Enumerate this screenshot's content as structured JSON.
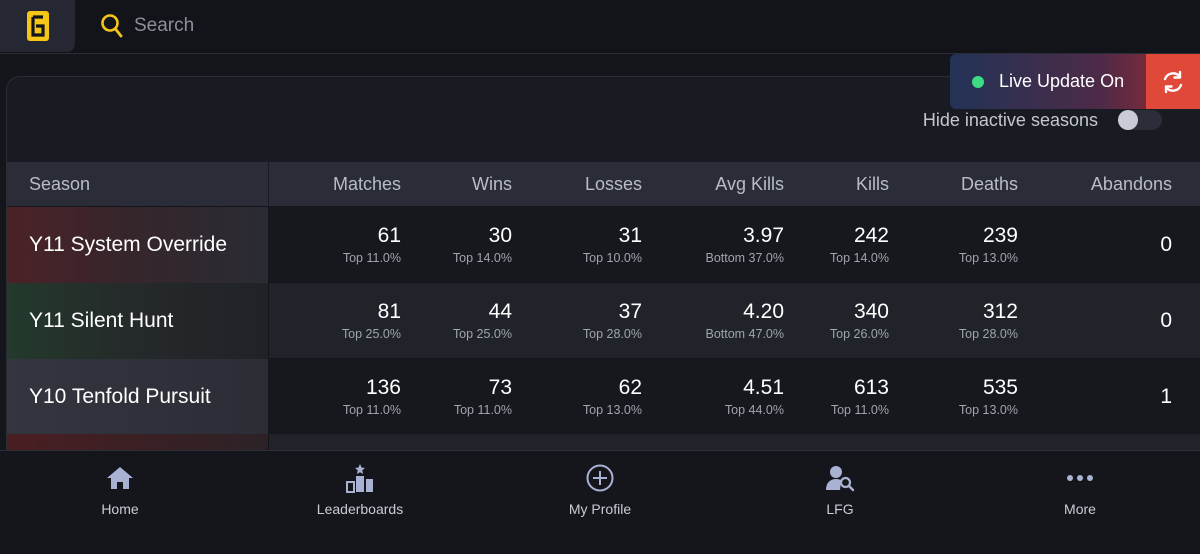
{
  "search": {
    "placeholder": "Search"
  },
  "live": {
    "label": "Live Update On",
    "status_color": "#3ddc84"
  },
  "filters": {
    "hide_inactive_label": "Hide inactive seasons",
    "hide_inactive_enabled": false
  },
  "table": {
    "headers": [
      "Season",
      "Matches",
      "Wins",
      "Losses",
      "Avg Kills",
      "Kills",
      "Deaths",
      "Abandons"
    ],
    "rows": [
      {
        "season": "Y11 System Override",
        "matches": {
          "value": "61",
          "rank": "Top 11.0%"
        },
        "wins": {
          "value": "30",
          "rank": "Top 14.0%"
        },
        "losses": {
          "value": "31",
          "rank": "Top 10.0%"
        },
        "avg_kills": {
          "value": "3.97",
          "rank": "Bottom 37.0%"
        },
        "kills": {
          "value": "242",
          "rank": "Top 14.0%"
        },
        "deaths": {
          "value": "239",
          "rank": "Top 13.0%"
        },
        "abandons": "0"
      },
      {
        "season": "Y11 Silent Hunt",
        "matches": {
          "value": "81",
          "rank": "Top 25.0%"
        },
        "wins": {
          "value": "44",
          "rank": "Top 25.0%"
        },
        "losses": {
          "value": "37",
          "rank": "Top 28.0%"
        },
        "avg_kills": {
          "value": "4.20",
          "rank": "Bottom 47.0%"
        },
        "kills": {
          "value": "340",
          "rank": "Top 26.0%"
        },
        "deaths": {
          "value": "312",
          "rank": "Top 28.0%"
        },
        "abandons": "0"
      },
      {
        "season": "Y10 Tenfold Pursuit",
        "matches": {
          "value": "136",
          "rank": "Top 11.0%"
        },
        "wins": {
          "value": "73",
          "rank": "Top 11.0%"
        },
        "losses": {
          "value": "62",
          "rank": "Top 13.0%"
        },
        "avg_kills": {
          "value": "4.51",
          "rank": "Top 44.0%"
        },
        "kills": {
          "value": "613",
          "rank": "Top 11.0%"
        },
        "deaths": {
          "value": "535",
          "rank": "Top 13.0%"
        },
        "abandons": "1"
      }
    ]
  },
  "nav": [
    {
      "label": "Home",
      "icon": "home-icon"
    },
    {
      "label": "Leaderboards",
      "icon": "leaderboards-icon"
    },
    {
      "label": "My Profile",
      "icon": "add-circle-icon"
    },
    {
      "label": "LFG",
      "icon": "user-search-icon"
    },
    {
      "label": "More",
      "icon": "more-icon"
    }
  ],
  "colors": {
    "accent": "#f5c518",
    "refresh": "#e0483a"
  }
}
